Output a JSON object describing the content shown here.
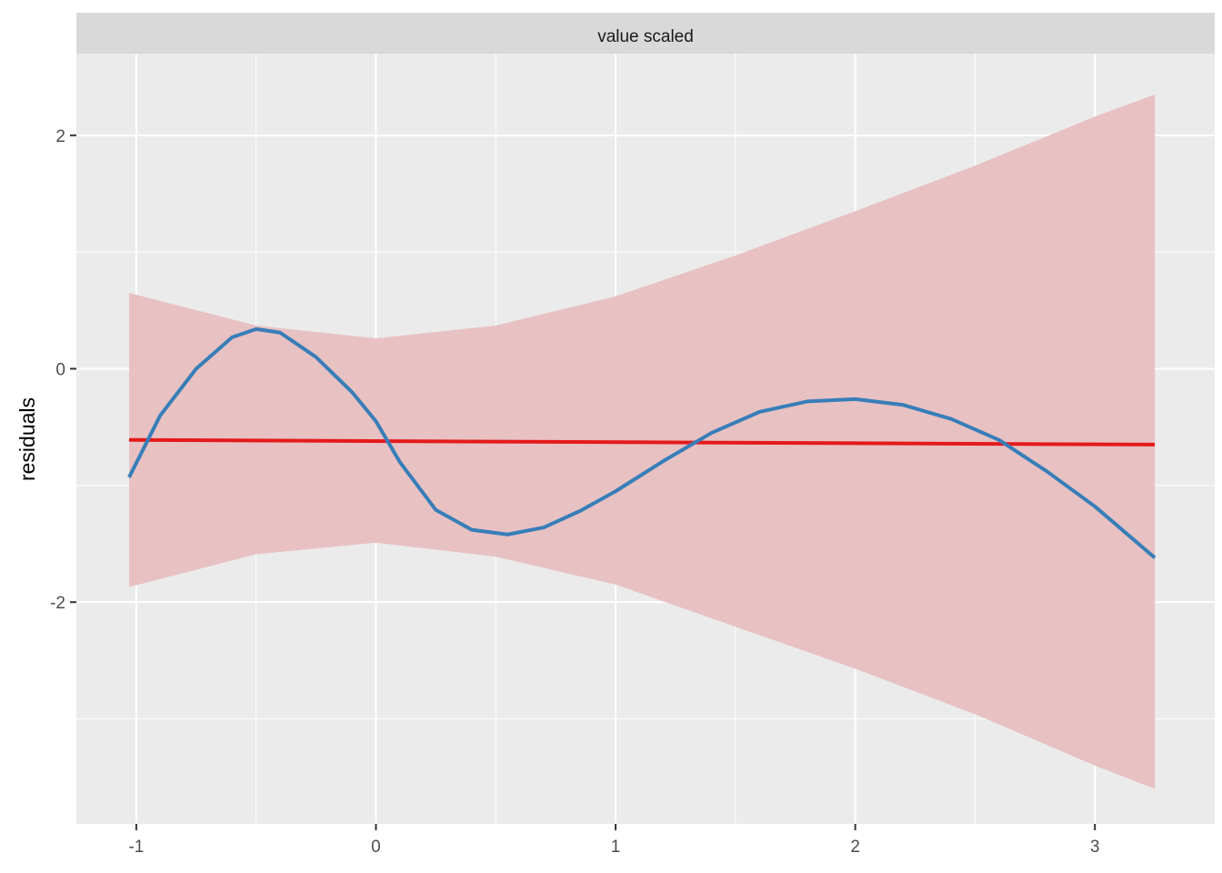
{
  "chart_data": {
    "type": "line",
    "title": "",
    "facet_label": "value scaled",
    "xlabel": "",
    "ylabel": "residuals",
    "xlim": [
      -1.25,
      3.5
    ],
    "ylim": [
      -3.9,
      2.7
    ],
    "x_ticks": [
      -1,
      0,
      1,
      2,
      3
    ],
    "x_tick_labels": [
      "-1",
      "0",
      "1",
      "2",
      "3"
    ],
    "y_ticks": [
      2,
      0,
      -2
    ],
    "y_tick_labels": [
      "2",
      "0",
      "-2"
    ],
    "grid": true,
    "colors": {
      "panel": "#ebebeb",
      "strip": "#d9d9d9",
      "grid": "#ffffff",
      "band": "#e8c1c3",
      "linear_fit": "#e41a1c",
      "smooth_fit": "#377eb8"
    },
    "band": {
      "x": [
        -1.03,
        -0.5,
        0.0,
        0.5,
        1.0,
        1.5,
        2.0,
        2.5,
        3.0,
        3.25
      ],
      "upper": [
        0.65,
        0.37,
        0.26,
        0.37,
        0.62,
        0.97,
        1.35,
        1.74,
        2.16,
        2.35
      ],
      "lower": [
        -1.87,
        -1.59,
        -1.49,
        -1.61,
        -1.85,
        -2.21,
        -2.57,
        -2.96,
        -3.4,
        -3.6
      ]
    },
    "series": [
      {
        "kind": "linear",
        "x": [
          -1.03,
          3.25
        ],
        "y": [
          -0.61,
          -0.65
        ]
      },
      {
        "kind": "smooth",
        "x": [
          -1.03,
          -0.9,
          -0.75,
          -0.6,
          -0.5,
          -0.4,
          -0.25,
          -0.1,
          0.0,
          0.1,
          0.25,
          0.4,
          0.55,
          0.7,
          0.85,
          1.0,
          1.2,
          1.4,
          1.6,
          1.8,
          2.0,
          2.2,
          2.4,
          2.6,
          2.8,
          3.0,
          3.25
        ],
        "y": [
          -0.93,
          -0.4,
          0.0,
          0.27,
          0.34,
          0.31,
          0.1,
          -0.2,
          -0.45,
          -0.8,
          -1.21,
          -1.38,
          -1.42,
          -1.36,
          -1.22,
          -1.05,
          -0.79,
          -0.55,
          -0.37,
          -0.28,
          -0.26,
          -0.31,
          -0.43,
          -0.61,
          -0.88,
          -1.18,
          -1.62
        ]
      }
    ]
  }
}
